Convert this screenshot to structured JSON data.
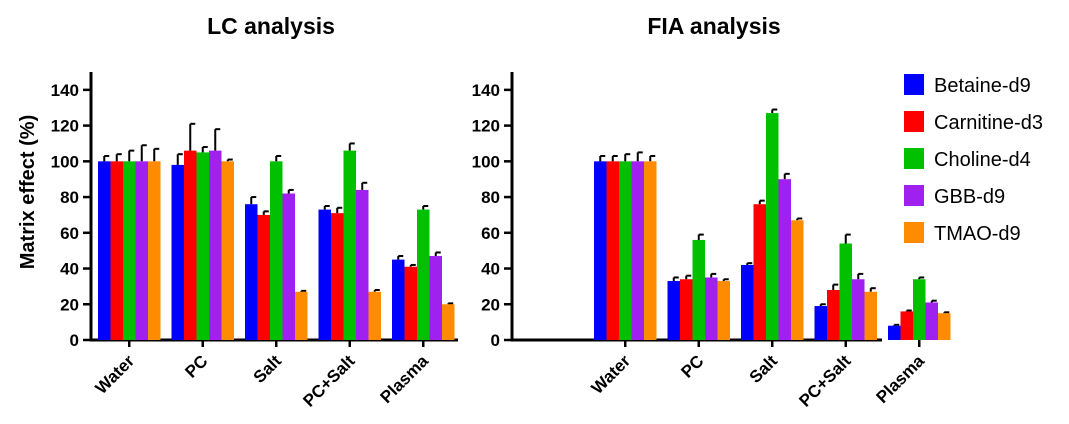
{
  "chart_data": [
    {
      "type": "bar",
      "title": "LC analysis",
      "xlabel": "",
      "ylabel": "Matrix effect (%)",
      "ylim": [
        0,
        150
      ],
      "yticks": [
        0,
        20,
        40,
        60,
        80,
        100,
        120,
        140
      ],
      "categories": [
        "Water",
        "PC",
        "Salt",
        "PC+Salt",
        "Plasma"
      ],
      "series": [
        {
          "name": "Betaine-d9",
          "color": "#0000ff",
          "values": [
            100,
            98,
            76,
            73,
            45
          ],
          "errors": [
            3,
            6,
            4,
            2,
            2
          ]
        },
        {
          "name": "Carnitine-d3",
          "color": "#ff0000",
          "values": [
            100,
            106,
            70,
            71,
            41
          ],
          "errors": [
            4,
            15,
            2,
            3,
            1
          ]
        },
        {
          "name": "Choline-d4",
          "color": "#00c000",
          "values": [
            100,
            105,
            100,
            106,
            73
          ],
          "errors": [
            6,
            3,
            3,
            4,
            2
          ]
        },
        {
          "name": "GBB-d9",
          "color": "#a020f0",
          "values": [
            100,
            106,
            82,
            84,
            47
          ],
          "errors": [
            9,
            12,
            2,
            4,
            2
          ]
        },
        {
          "name": "TMAO-d9",
          "color": "#ff8c00",
          "values": [
            100,
            100,
            27,
            27,
            20
          ],
          "errors": [
            7,
            1,
            0.5,
            1,
            0.5
          ]
        }
      ],
      "grid": false
    },
    {
      "type": "bar",
      "title": "FIA analysis",
      "xlabel": "",
      "ylabel": "",
      "ylim": [
        0,
        150
      ],
      "yticks": [
        0,
        20,
        40,
        60,
        80,
        100,
        120,
        140
      ],
      "categories": [
        "Water",
        "PC",
        "Salt",
        "PC+Salt",
        "Plasma"
      ],
      "series": [
        {
          "name": "Betaine-d9",
          "color": "#0000ff",
          "values": [
            100,
            33,
            42,
            19,
            8
          ],
          "errors": [
            3,
            2,
            1,
            1,
            0.5
          ]
        },
        {
          "name": "Carnitine-d3",
          "color": "#ff0000",
          "values": [
            100,
            34,
            76,
            28,
            16
          ],
          "errors": [
            3,
            2,
            2,
            3,
            0.5
          ]
        },
        {
          "name": "Choline-d4",
          "color": "#00c000",
          "values": [
            100,
            56,
            127,
            54,
            34
          ],
          "errors": [
            4,
            3,
            2,
            5,
            1
          ]
        },
        {
          "name": "GBB-d9",
          "color": "#a020f0",
          "values": [
            100,
            35,
            90,
            34,
            21
          ],
          "errors": [
            5,
            2,
            3,
            3,
            1
          ]
        },
        {
          "name": "TMAO-d9",
          "color": "#ff8c00",
          "values": [
            100,
            33,
            67,
            27,
            15
          ],
          "errors": [
            3,
            1,
            1,
            2,
            0.5
          ]
        }
      ],
      "grid": false
    }
  ],
  "legend": {
    "placement": "right",
    "entries": [
      {
        "name": "Betaine-d9",
        "color": "#0000ff"
      },
      {
        "name": "Carnitine-d3",
        "color": "#ff0000"
      },
      {
        "name": "Choline-d4",
        "color": "#00c000"
      },
      {
        "name": "GBB-d9",
        "color": "#a020f0"
      },
      {
        "name": "TMAO-d9",
        "color": "#ff8c00"
      }
    ]
  }
}
